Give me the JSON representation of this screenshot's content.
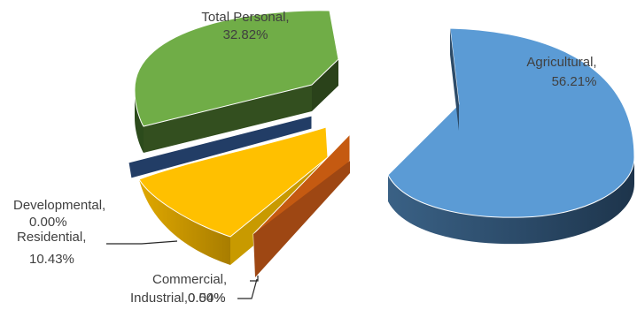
{
  "chart_data": {
    "type": "pie",
    "style": "exploded 3D pie",
    "title": "",
    "slices": [
      {
        "name": "Agricultural",
        "value": 56.21,
        "label": "Agricultural,",
        "pct": "56.21%",
        "color": "#5b9bd5"
      },
      {
        "name": "Commercial",
        "value": 0.54,
        "label": "Commercial,",
        "pct": "0.54%",
        "color": "#c55a11"
      },
      {
        "name": "Industrial",
        "value": 0.0,
        "label": "Industrial,",
        "pct": "0.00%",
        "color": "#7f7f7f"
      },
      {
        "name": "Residential",
        "value": 10.43,
        "label": "Residential,",
        "pct": "10.43%",
        "color": "#ffc000"
      },
      {
        "name": "Developmental",
        "value": 0.0,
        "label": "Developmental,",
        "pct": "0.00%",
        "color": "#264478"
      },
      {
        "name": "Total Personal",
        "value": 32.82,
        "label": "Total Personal,",
        "pct": "32.82%",
        "color": "#70ad47"
      }
    ]
  }
}
